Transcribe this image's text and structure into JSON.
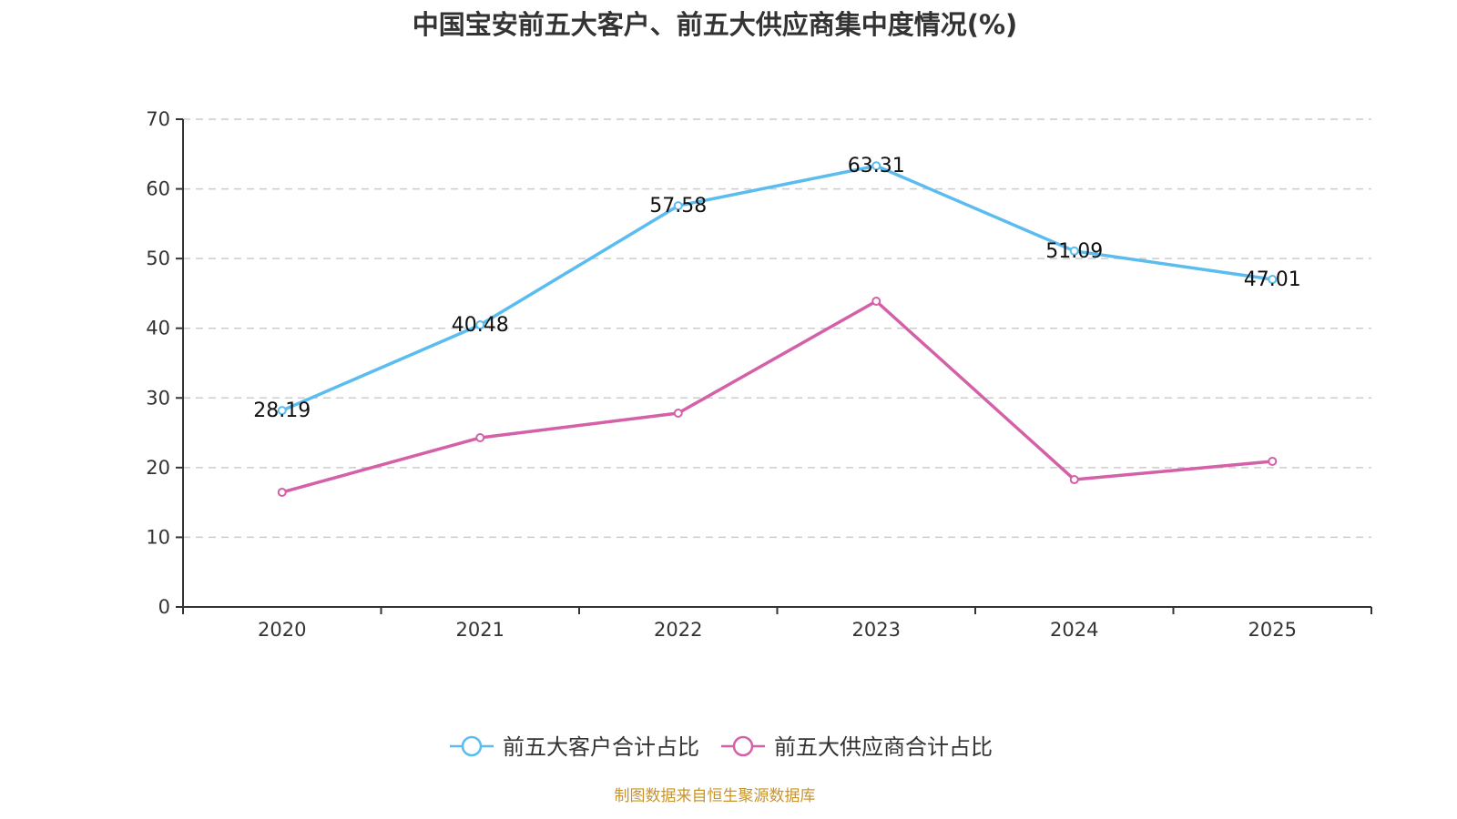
{
  "chart_data": {
    "type": "line",
    "title": "中国宝安前五大客户、前五大供应商集中度情况(%)",
    "xlabel": "",
    "ylabel": "",
    "categories": [
      "2020",
      "2021",
      "2022",
      "2023",
      "2024",
      "2025"
    ],
    "ylim": [
      0,
      70
    ],
    "yticks": [
      0,
      10,
      20,
      30,
      40,
      50,
      60,
      70
    ],
    "grid": "horizontal-dashed",
    "legend_position": "bottom-center",
    "series": [
      {
        "name": "前五大客户合计占比",
        "color": "#5bbcf0",
        "values": [
          28.19,
          40.48,
          57.58,
          63.31,
          51.09,
          47.01
        ],
        "labels": [
          "28.19",
          "40.48",
          "57.58",
          "63.31",
          "51.09",
          "47.01"
        ],
        "show_labels": true
      },
      {
        "name": "前五大供应商合计占比",
        "color": "#d460a8",
        "values": [
          16.46,
          24.29,
          27.82,
          43.88,
          18.28,
          20.9
        ],
        "show_labels": false
      }
    ]
  },
  "source_note": "制图数据来自恒生聚源数据库"
}
